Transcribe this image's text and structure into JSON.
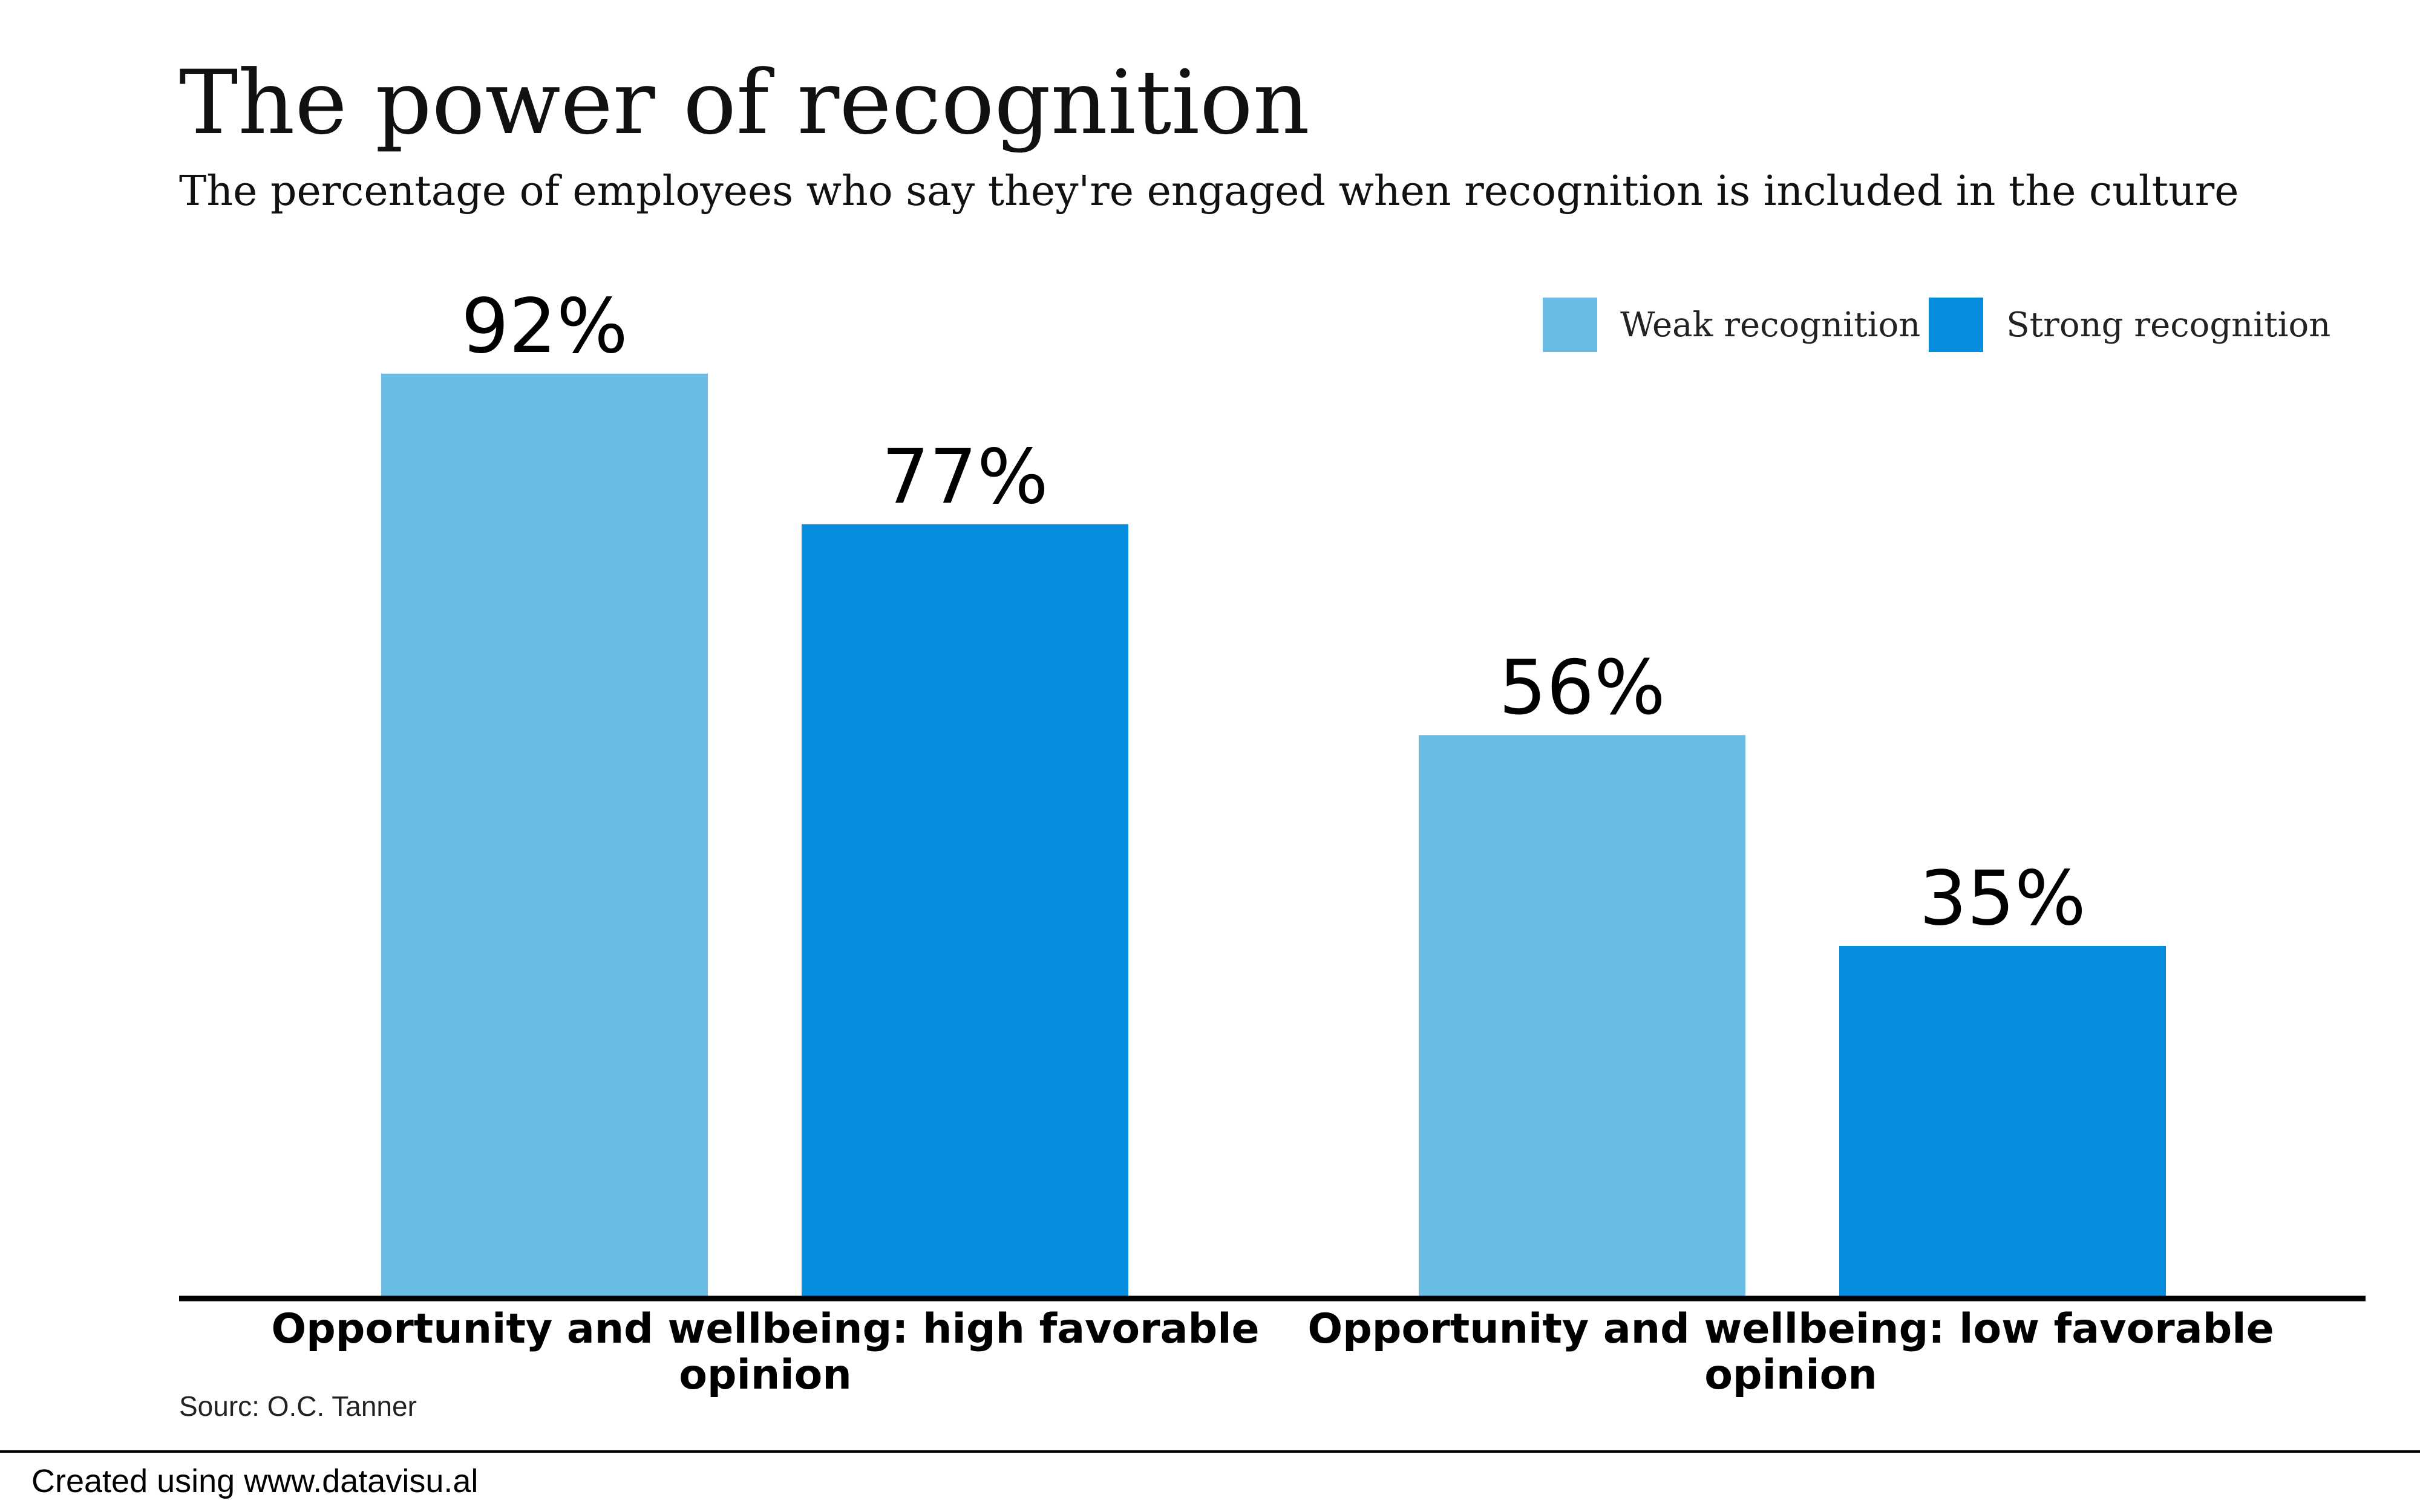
{
  "header": {
    "title": "The power of recognition",
    "subtitle": "The percentage of employees who say they're engaged when recognition is included in the culture"
  },
  "legend": {
    "items": [
      {
        "label": "Weak recognition",
        "color": "#69bde4"
      },
      {
        "label": "Strong recognition",
        "color": "#068ddd"
      }
    ],
    "placement": "top-right"
  },
  "chart_data": {
    "type": "bar",
    "title": "The power of recognition",
    "subtitle": "The percentage of employees who say they're engaged when recognition is included in the culture",
    "categories": [
      "Opportunity and wellbeing: high favorable opinion",
      "Opportunity and wellbeing: low favorable opinion"
    ],
    "series": [
      {
        "name": "Weak recognition",
        "color": "#69bde4",
        "values": [
          92,
          56
        ],
        "labels": [
          "92%",
          "56%"
        ]
      },
      {
        "name": "Strong recognition",
        "color": "#068ddd",
        "values": [
          77,
          35
        ],
        "labels": [
          "77%",
          "35%"
        ]
      }
    ],
    "xlabel": "",
    "ylabel": "",
    "ylim": [
      0,
      100
    ],
    "grid": false,
    "legend": "top-right"
  },
  "footer": {
    "source": "Sourc: O.C. Tanner",
    "credit": "Created using www.datavisu.al"
  }
}
